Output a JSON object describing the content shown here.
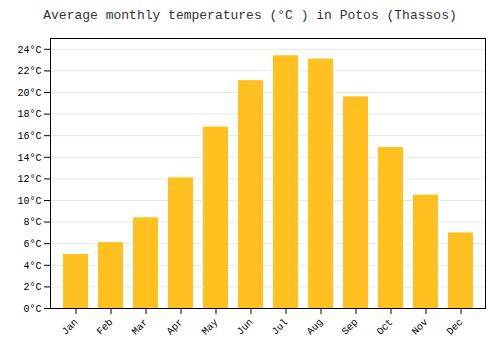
{
  "chart_data": {
    "type": "bar",
    "title": "Average monthly temperatures (°C ) in Potos (Thassos)",
    "categories": [
      "Jan",
      "Feb",
      "Mar",
      "Apr",
      "May",
      "Jun",
      "Jul",
      "Aug",
      "Sep",
      "Oct",
      "Nov",
      "Dec"
    ],
    "values": [
      5.0,
      6.1,
      8.4,
      12.1,
      16.8,
      21.1,
      23.4,
      23.1,
      19.6,
      14.9,
      10.5,
      7.0
    ],
    "color": "#FFC020",
    "ylim": [
      0,
      25
    ],
    "yticks": [
      {
        "value": 0,
        "label": "0°C"
      },
      {
        "value": 2,
        "label": "2°C"
      },
      {
        "value": 4,
        "label": "4°C"
      },
      {
        "value": 6,
        "label": "6°C"
      },
      {
        "value": 8,
        "label": "8°C"
      },
      {
        "value": 10,
        "label": "10°C"
      },
      {
        "value": 12,
        "label": "12°C"
      },
      {
        "value": 14,
        "label": "14°C"
      },
      {
        "value": 16,
        "label": "16°C"
      },
      {
        "value": 18,
        "label": "18°C"
      },
      {
        "value": 20,
        "label": "20°C"
      },
      {
        "value": 22,
        "label": "22°C"
      },
      {
        "value": 24,
        "label": "24°C"
      }
    ],
    "grid": true
  }
}
